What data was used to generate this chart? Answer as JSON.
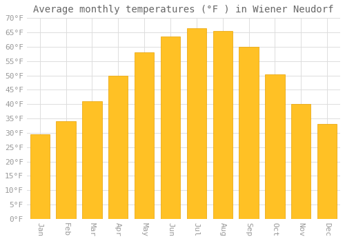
{
  "title": "Average monthly temperatures (°F ) in Wiener Neudorf",
  "months": [
    "Jan",
    "Feb",
    "Mar",
    "Apr",
    "May",
    "Jun",
    "Jul",
    "Aug",
    "Sep",
    "Oct",
    "Nov",
    "Dec"
  ],
  "values": [
    29.5,
    34.0,
    41.0,
    50.0,
    58.0,
    63.5,
    66.5,
    65.5,
    60.0,
    50.5,
    40.0,
    33.0
  ],
  "bar_color": "#FFC125",
  "bar_edge_color": "#E8A000",
  "ylim": [
    0,
    70
  ],
  "yticks": [
    0,
    5,
    10,
    15,
    20,
    25,
    30,
    35,
    40,
    45,
    50,
    55,
    60,
    65,
    70
  ],
  "background_color": "#FFFFFF",
  "grid_color": "#DDDDDD",
  "title_fontsize": 10,
  "tick_fontsize": 8,
  "tick_font_color": "#999999",
  "title_font_color": "#666666",
  "bar_width": 0.75
}
